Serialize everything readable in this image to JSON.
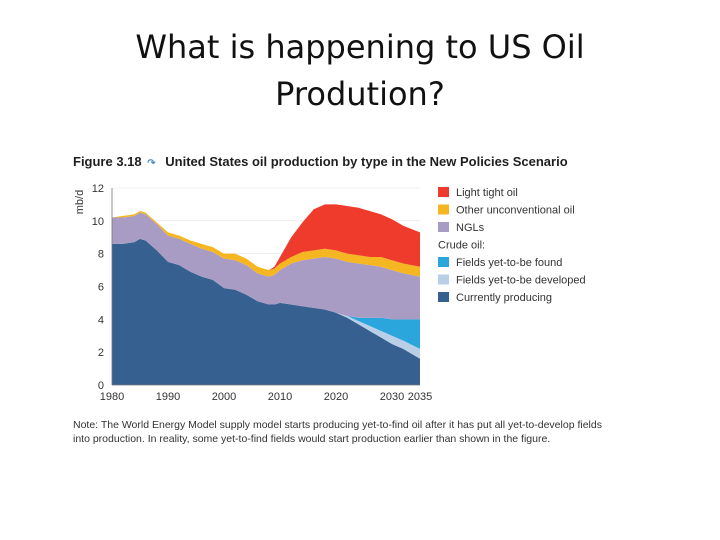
{
  "slide": {
    "title_line1": "What is happening to US Oil",
    "title_line2": "Prodution?"
  },
  "figure": {
    "number": "Figure 3.18",
    "link_icon": "link-arrow-icon",
    "caption": "United States oil production by type in the New Policies Scenario",
    "note": "Note: The World Energy Model supply model starts producing yet-to-find oil after it has put all yet-to-develop fields into production. In reality, some yet-to-find fields would start production earlier than shown in the figure."
  },
  "chart_data": {
    "type": "area",
    "stacked": true,
    "ylabel": "mb/d",
    "ylim": [
      0,
      12
    ],
    "yticks": [
      0,
      2,
      4,
      6,
      8,
      10,
      12
    ],
    "xlim": [
      1980,
      2035
    ],
    "xtick_labels": [
      "1980",
      "1990",
      "2000",
      "2010",
      "2020",
      "2030",
      "2035"
    ],
    "xtick_values": [
      1980,
      1990,
      2000,
      2010,
      2020,
      2030,
      2035
    ],
    "legend_position": "right",
    "legend_group_label": "Crude oil:",
    "x": [
      1980,
      1982,
      1984,
      1985,
      1986,
      1988,
      1990,
      1991,
      1992,
      1994,
      1996,
      1998,
      2000,
      2002,
      2004,
      2006,
      2008,
      2009,
      2010,
      2012,
      2014,
      2016,
      2018,
      2020,
      2022,
      2024,
      2026,
      2028,
      2030,
      2032,
      2035
    ],
    "series": [
      {
        "name": "Currently producing",
        "color": "#35608f",
        "values": [
          8.6,
          8.6,
          8.7,
          8.9,
          8.8,
          8.2,
          7.5,
          7.4,
          7.3,
          6.9,
          6.6,
          6.4,
          5.9,
          5.8,
          5.5,
          5.1,
          4.9,
          4.9,
          5.0,
          4.9,
          4.8,
          4.7,
          4.6,
          4.4,
          4.1,
          3.7,
          3.3,
          2.9,
          2.5,
          2.2,
          1.6
        ]
      },
      {
        "name": "Fields yet-to-be developed",
        "color": "#b9cfe8",
        "values": [
          0,
          0,
          0,
          0,
          0,
          0,
          0,
          0,
          0,
          0,
          0,
          0,
          0,
          0,
          0,
          0,
          0,
          0,
          0,
          0,
          0,
          0,
          0,
          0,
          0.1,
          0.2,
          0.3,
          0.4,
          0.5,
          0.5,
          0.6
        ]
      },
      {
        "name": "Fields yet-to-be found",
        "color": "#2aa6dc",
        "values": [
          0,
          0,
          0,
          0,
          0,
          0,
          0,
          0,
          0,
          0,
          0,
          0,
          0,
          0,
          0,
          0,
          0,
          0,
          0,
          0,
          0,
          0,
          0,
          0,
          0,
          0.2,
          0.5,
          0.8,
          1.0,
          1.3,
          1.8
        ]
      },
      {
        "name": "NGLs",
        "color": "#a89cc5",
        "values": [
          1.6,
          1.6,
          1.6,
          1.6,
          1.6,
          1.6,
          1.6,
          1.6,
          1.6,
          1.7,
          1.7,
          1.7,
          1.8,
          1.8,
          1.8,
          1.7,
          1.7,
          1.8,
          2.0,
          2.5,
          2.8,
          3.0,
          3.2,
          3.3,
          3.3,
          3.3,
          3.2,
          3.1,
          3.0,
          2.8,
          2.6
        ]
      },
      {
        "name": "Other unconventional oil",
        "color": "#f5b622",
        "values": [
          0.0,
          0.1,
          0.1,
          0.1,
          0.1,
          0.1,
          0.2,
          0.2,
          0.2,
          0.2,
          0.3,
          0.3,
          0.3,
          0.4,
          0.4,
          0.4,
          0.4,
          0.4,
          0.4,
          0.4,
          0.5,
          0.5,
          0.5,
          0.5,
          0.5,
          0.5,
          0.5,
          0.6,
          0.6,
          0.6,
          0.6
        ]
      },
      {
        "name": "Light tight oil",
        "color": "#ef3b2c",
        "values": [
          0,
          0,
          0,
          0,
          0,
          0,
          0,
          0,
          0,
          0,
          0,
          0,
          0,
          0,
          0,
          0,
          0,
          0.1,
          0.4,
          1.2,
          1.8,
          2.5,
          2.7,
          2.8,
          2.9,
          2.9,
          2.8,
          2.6,
          2.5,
          2.3,
          2.1
        ]
      }
    ],
    "legend_order": [
      {
        "name": "Light tight oil",
        "color": "#ef3b2c"
      },
      {
        "name": "Other unconventional oil",
        "color": "#f5b622"
      },
      {
        "name": "NGLs",
        "color": "#a89cc5"
      },
      {
        "name": "Crude oil:",
        "heading": true
      },
      {
        "name": "Fields yet-to-be found",
        "color": "#2aa6dc"
      },
      {
        "name": "Fields yet-to-be developed",
        "color": "#b9cfe8"
      },
      {
        "name": "Currently producing",
        "color": "#35608f"
      }
    ]
  }
}
